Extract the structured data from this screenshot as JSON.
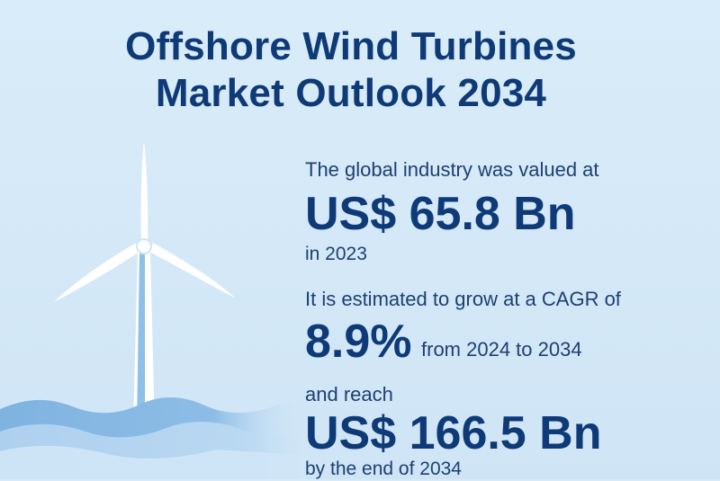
{
  "title": {
    "line1": "Offshore Wind Turbines",
    "line2": "Market Outlook 2034"
  },
  "stats": {
    "valued_intro": "The global industry was valued at",
    "valued_amount": "US$ 65.8 Bn",
    "valued_year": "in 2023",
    "growth_intro": "It is estimated to grow at a CAGR of",
    "growth_rate": "8.9%",
    "growth_period": "from 2024 to 2034",
    "reach_intro": "and reach",
    "reach_amount": "US$ 166.5 Bn",
    "reach_year": "by the end of 2034"
  },
  "colors": {
    "background": "#d6eaf8",
    "title": "#0f3a78",
    "wave_dark": "#6fa8d8",
    "wave_light": "#a9cdee",
    "turbine": "#ffffff"
  },
  "icons": {
    "turbine": "wind-turbine-illustration",
    "waves": "ocean-waves-illustration"
  }
}
